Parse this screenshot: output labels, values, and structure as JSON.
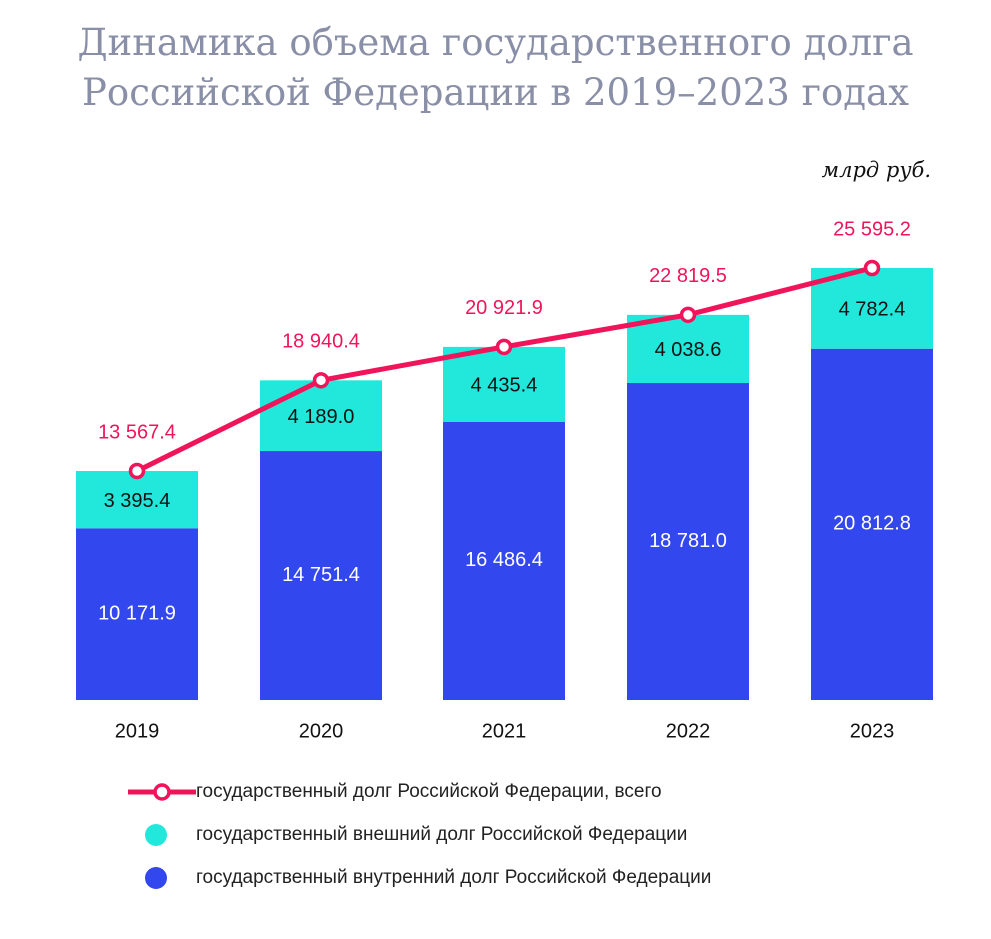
{
  "title_line1": "Динамика объема государственного долга",
  "title_line2": "Российской Федерации в 2019–2023 годах",
  "unit": "млрд руб.",
  "colors": {
    "total": "#f0145a",
    "external": "#22e8dc",
    "internal": "#3347ee",
    "title": "#8a8fa8"
  },
  "chart_data": {
    "type": "bar",
    "stacked": true,
    "categories": [
      "2019",
      "2020",
      "2021",
      "2022",
      "2023"
    ],
    "series": [
      {
        "name": "государственный внутренний долг Российской Федерации",
        "type": "bar",
        "values": [
          10171.9,
          14751.4,
          16486.4,
          18781.0,
          20812.8
        ],
        "labels": [
          "10 171.9",
          "14 751.4",
          "16 486.4",
          "18 781.0",
          "20 812.8"
        ]
      },
      {
        "name": "государственный внешний долг Российской Федерации",
        "type": "bar",
        "values": [
          3395.4,
          4189.0,
          4435.4,
          4038.6,
          4782.4
        ],
        "labels": [
          "3 395.4",
          "4 189.0",
          "4 435.4",
          "4 038.6",
          "4 782.4"
        ]
      },
      {
        "name": "государственный долг Российской Федерации, всего",
        "type": "line",
        "values": [
          13567.4,
          18940.4,
          20921.9,
          22819.5,
          25595.2
        ],
        "labels": [
          "13 567.4",
          "18 940.4",
          "20 921.9",
          "22 819.5",
          "25 595.2"
        ]
      }
    ]
  },
  "legend": [
    {
      "key": "total",
      "label": "государственный долг Российской Федерации, всего"
    },
    {
      "key": "external",
      "label": "государственный внешний долг Российской Федерации"
    },
    {
      "key": "internal",
      "label": "государственный внутренний долг Российской Федерации"
    }
  ]
}
